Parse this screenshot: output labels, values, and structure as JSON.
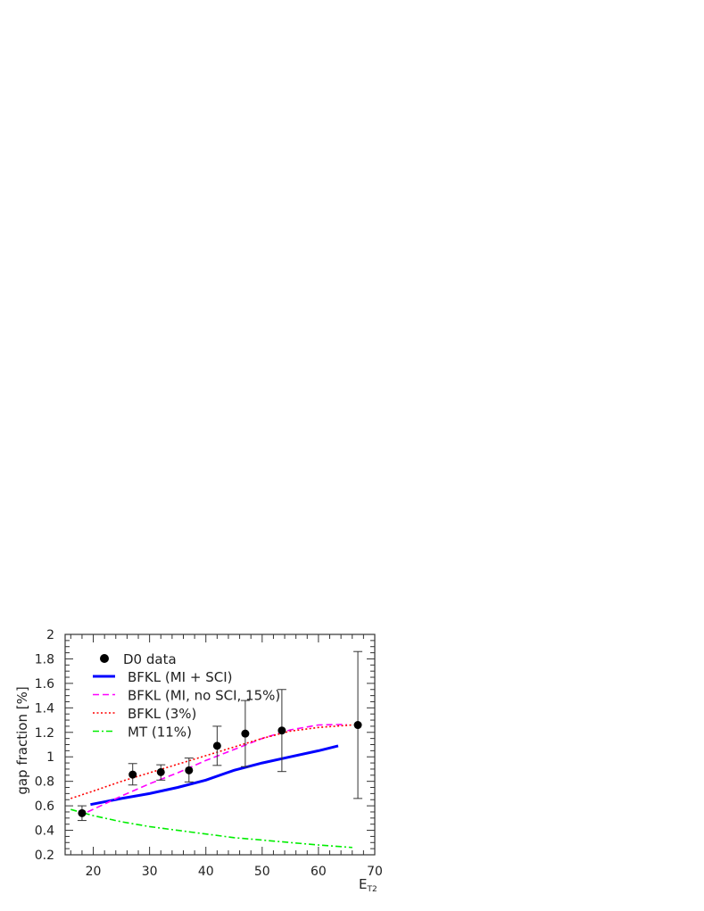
{
  "chart_data": {
    "type": "line",
    "xlabel": "E",
    "xlabel_sub": "T2",
    "ylabel": "gap fraction  [%]",
    "xlim": [
      15,
      70
    ],
    "ylim": [
      0.2,
      2.0
    ],
    "xticks": [
      20,
      30,
      40,
      50,
      60,
      70
    ],
    "yticks": [
      0.2,
      0.4,
      0.6,
      0.8,
      1,
      1.2,
      1.4,
      1.6,
      1.8,
      2
    ],
    "legend_position": "top-left",
    "data_points": {
      "name": "D0 data",
      "color": "#000000",
      "x": [
        18,
        27,
        32,
        37,
        42,
        47,
        53.5,
        67
      ],
      "y": [
        0.54,
        0.855,
        0.875,
        0.89,
        1.09,
        1.19,
        1.215,
        1.26
      ],
      "err_low": [
        0.48,
        0.77,
        0.81,
        0.795,
        0.93,
        0.92,
        0.88,
        0.66
      ],
      "err_high": [
        0.6,
        0.945,
        0.935,
        0.99,
        1.25,
        1.46,
        1.55,
        1.86
      ]
    },
    "series": [
      {
        "name": "BFKL (MI + SCI)",
        "color": "#0000ff",
        "style": "solid",
        "x": [
          19.5,
          25,
          30,
          35,
          40,
          45,
          50,
          55,
          60,
          63.5
        ],
        "y": [
          0.61,
          0.66,
          0.7,
          0.75,
          0.81,
          0.89,
          0.95,
          1.0,
          1.05,
          1.09
        ]
      },
      {
        "name": "BFKL (MI, no SCI, 15%)",
        "color": "#ff00ff",
        "style": "dashed",
        "x": [
          19,
          25,
          30,
          35,
          40,
          45,
          50,
          55,
          60,
          65
        ],
        "y": [
          0.55,
          0.68,
          0.78,
          0.87,
          0.97,
          1.06,
          1.15,
          1.22,
          1.26,
          1.265
        ]
      },
      {
        "name": "BFKL (3%)",
        "color": "#ff0000",
        "style": "dotted",
        "x": [
          16,
          20,
          25,
          30,
          35,
          40,
          45,
          50,
          55,
          60,
          66
        ],
        "y": [
          0.66,
          0.72,
          0.8,
          0.87,
          0.94,
          1.01,
          1.08,
          1.15,
          1.21,
          1.24,
          1.26
        ]
      },
      {
        "name": "MT (11%)",
        "color": "#00ee00",
        "style": "dashdot",
        "x": [
          16,
          20,
          25,
          30,
          35,
          40,
          45,
          50,
          55,
          60,
          66
        ],
        "y": [
          0.57,
          0.52,
          0.47,
          0.43,
          0.4,
          0.37,
          0.34,
          0.32,
          0.3,
          0.28,
          0.26
        ]
      }
    ]
  }
}
